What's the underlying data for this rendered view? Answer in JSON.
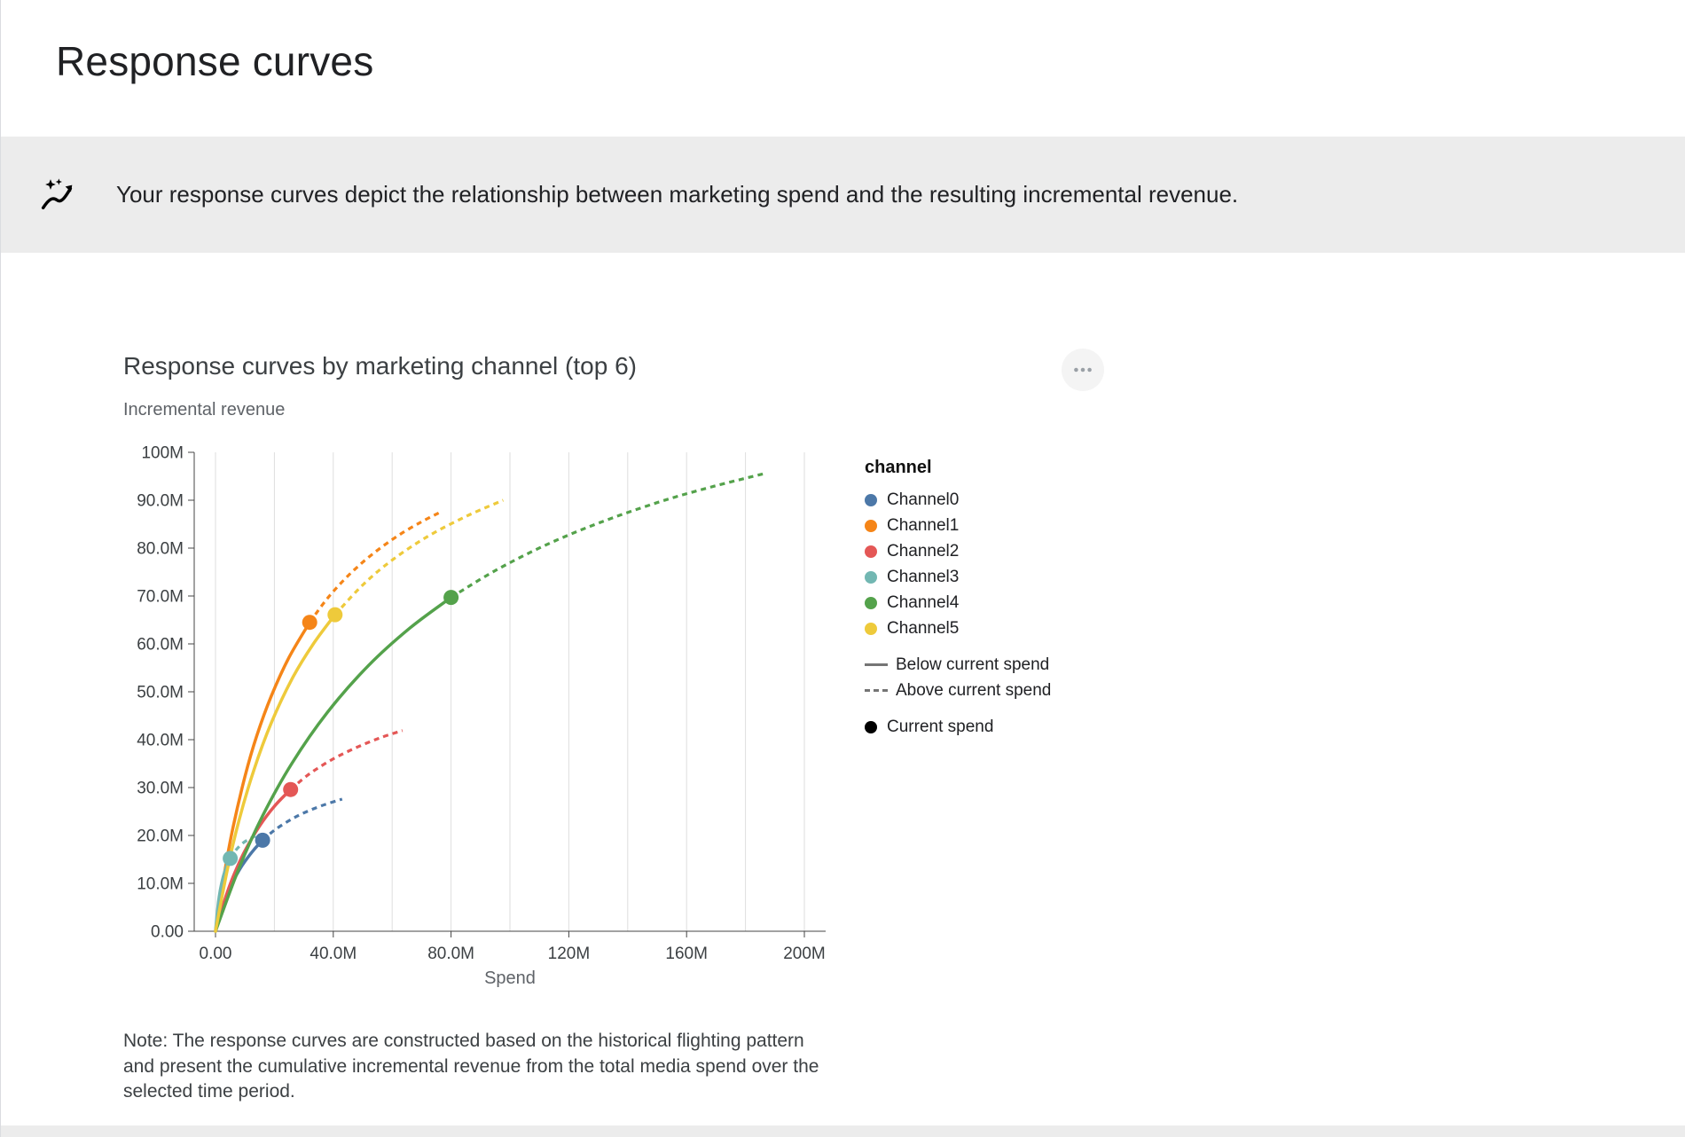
{
  "page": {
    "title": "Response curves"
  },
  "banner": {
    "icon": "auto-graph-icon",
    "text": "Your response curves depict the relationship between marketing spend and the resulting incremental revenue."
  },
  "chart_card": {
    "menu_icon": "more-options-icon",
    "note": "Note: The response curves are constructed based on the historical flighting pattern and present the cumulative incremental revenue from the total media spend over the selected time period."
  },
  "legend": {
    "header": "channel",
    "channels": [
      {
        "label": "Channel0",
        "color": "#4C78A8"
      },
      {
        "label": "Channel1",
        "color": "#F58518"
      },
      {
        "label": "Channel2",
        "color": "#E45756"
      },
      {
        "label": "Channel3",
        "color": "#72B7B2"
      },
      {
        "label": "Channel4",
        "color": "#54A24B"
      },
      {
        "label": "Channel5",
        "color": "#EECA3B"
      }
    ],
    "line_styles": [
      {
        "label": "Below current spend",
        "style": "solid"
      },
      {
        "label": "Above current spend",
        "style": "dashed"
      }
    ],
    "point": {
      "label": "Current spend",
      "color": "#000000"
    }
  },
  "chart_data": {
    "type": "line",
    "title": "Response curves by marketing channel (top 6)",
    "xlabel": "Spend",
    "ylabel": "Incremental revenue",
    "xlim": [
      0,
      200
    ],
    "ylim": [
      0,
      100
    ],
    "units": "millions",
    "x_grid_step": 20,
    "grid": "vertical",
    "legend_position": "right",
    "x_ticks": [
      {
        "value": 0,
        "label": "0.00"
      },
      {
        "value": 40,
        "label": "40.0M"
      },
      {
        "value": 80,
        "label": "80.0M"
      },
      {
        "value": 120,
        "label": "120M"
      },
      {
        "value": 160,
        "label": "160M"
      },
      {
        "value": 200,
        "label": "200M"
      }
    ],
    "y_ticks": [
      {
        "value": 0,
        "label": "0.00"
      },
      {
        "value": 10,
        "label": "10.0M"
      },
      {
        "value": 20,
        "label": "20.0M"
      },
      {
        "value": 30,
        "label": "30.0M"
      },
      {
        "value": 40,
        "label": "40.0M"
      },
      {
        "value": 50,
        "label": "50.0M"
      },
      {
        "value": 60,
        "label": "60.0M"
      },
      {
        "value": 70,
        "label": "70.0M"
      },
      {
        "value": 80,
        "label": "80.0M"
      },
      {
        "value": 90,
        "label": "90.0M"
      },
      {
        "value": 100,
        "label": "100M"
      }
    ],
    "series": [
      {
        "name": "Channel0",
        "color": "#4C78A8",
        "current_spend": [
          16,
          19.0
        ],
        "below_current_spend": [
          [
            0,
            0
          ],
          [
            2,
            4.3
          ],
          [
            4,
            7.6
          ],
          [
            6,
            10.4
          ],
          [
            8,
            12.7
          ],
          [
            10,
            14.6
          ],
          [
            13,
            17.0
          ],
          [
            16,
            19.0
          ]
        ],
        "above_current_spend": [
          [
            16,
            19.0
          ],
          [
            20,
            21.1
          ],
          [
            25,
            23.1
          ],
          [
            30,
            24.7
          ],
          [
            36,
            26.2
          ],
          [
            43,
            27.6
          ]
        ]
      },
      {
        "name": "Channel1",
        "color": "#F58518",
        "current_spend": [
          32,
          64.5
        ],
        "below_current_spend": [
          [
            0,
            0
          ],
          [
            3,
            12.0
          ],
          [
            6,
            21.8
          ],
          [
            10,
            32.3
          ],
          [
            14,
            40.8
          ],
          [
            19,
            49.2
          ],
          [
            25,
            57.2
          ],
          [
            32,
            64.5
          ]
        ],
        "above_current_spend": [
          [
            32,
            64.5
          ],
          [
            38,
            69.5
          ],
          [
            45,
            74.2
          ],
          [
            53,
            78.6
          ],
          [
            62,
            82.6
          ],
          [
            70,
            85.5
          ],
          [
            77,
            87.7
          ]
        ]
      },
      {
        "name": "Channel2",
        "color": "#E45756",
        "current_spend": [
          25.5,
          29.6
        ],
        "below_current_spend": [
          [
            0,
            0
          ],
          [
            3,
            6.3
          ],
          [
            6,
            11.4
          ],
          [
            10,
            16.8
          ],
          [
            15,
            22.0
          ],
          [
            20,
            26.1
          ],
          [
            25.5,
            29.6
          ]
        ],
        "above_current_spend": [
          [
            25.5,
            29.6
          ],
          [
            32,
            32.9
          ],
          [
            40,
            36.0
          ],
          [
            48,
            38.4
          ],
          [
            56,
            40.4
          ],
          [
            63.5,
            41.9
          ]
        ]
      },
      {
        "name": "Channel3",
        "color": "#72B7B2",
        "current_spend": [
          5,
          15.2
        ],
        "below_current_spend": [
          [
            0,
            0
          ],
          [
            0.8,
            5.1
          ],
          [
            1.6,
            8.5
          ],
          [
            2.6,
            11.3
          ],
          [
            3.8,
            13.6
          ],
          [
            5,
            15.2
          ]
        ],
        "above_current_spend": [
          [
            5,
            15.2
          ],
          [
            7,
            17.0
          ],
          [
            9.5,
            18.5
          ],
          [
            12,
            19.4
          ],
          [
            14,
            20.0
          ]
        ]
      },
      {
        "name": "Channel4",
        "color": "#54A24B",
        "current_spend": [
          80,
          69.7
        ],
        "below_current_spend": [
          [
            0,
            0
          ],
          [
            8,
            13.2
          ],
          [
            16,
            24.1
          ],
          [
            26,
            35.1
          ],
          [
            38,
            45.7
          ],
          [
            52,
            55.5
          ],
          [
            66,
            63.3
          ],
          [
            80,
            69.7
          ]
        ],
        "above_current_spend": [
          [
            80,
            69.7
          ],
          [
            95,
            75.3
          ],
          [
            112,
            80.6
          ],
          [
            130,
            85.2
          ],
          [
            150,
            89.5
          ],
          [
            168,
            92.7
          ],
          [
            186,
            95.5
          ]
        ]
      },
      {
        "name": "Channel5",
        "color": "#EECA3B",
        "current_spend": [
          40.6,
          66.1
        ],
        "below_current_spend": [
          [
            0,
            0
          ],
          [
            4,
            12.8
          ],
          [
            8,
            23.2
          ],
          [
            13,
            33.6
          ],
          [
            19,
            43.6
          ],
          [
            26,
            52.7
          ],
          [
            33,
            59.8
          ],
          [
            40.6,
            66.1
          ]
        ],
        "above_current_spend": [
          [
            40.6,
            66.1
          ],
          [
            50,
            72.3
          ],
          [
            60,
            77.5
          ],
          [
            72,
            82.4
          ],
          [
            85,
            86.6
          ],
          [
            97.7,
            90.0
          ]
        ]
      }
    ]
  }
}
